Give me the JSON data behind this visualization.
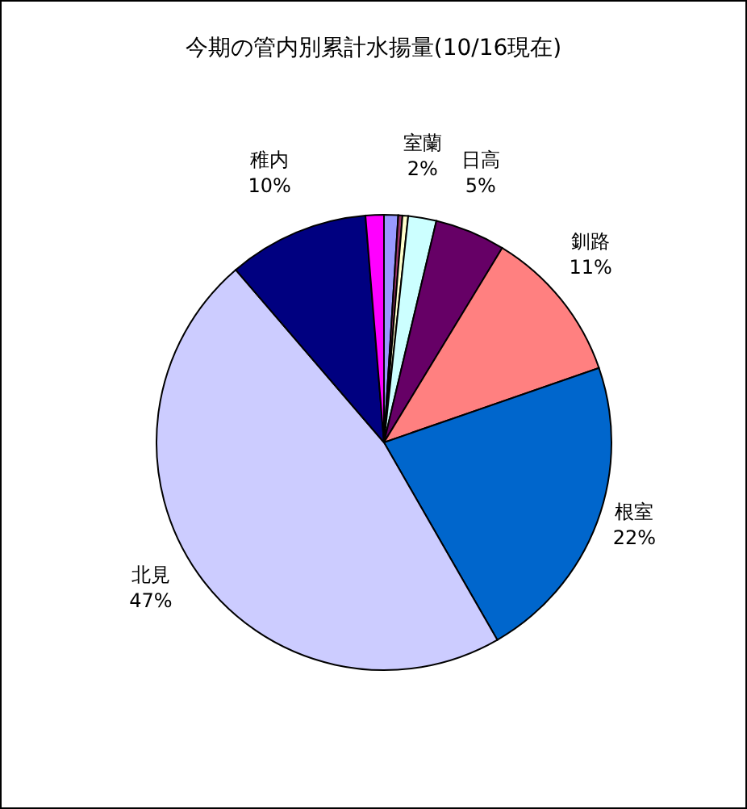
{
  "chart_data": {
    "type": "pie",
    "title": "今期の管内別累計水揚量(10/16現在)",
    "categories": [
      null,
      null,
      null,
      "室蘭",
      "日高",
      "釧路",
      "根室",
      "北見",
      "稚内",
      null
    ],
    "values": [
      1.0,
      0.3,
      0.4,
      2,
      5,
      11,
      22,
      47,
      10,
      1.3
    ],
    "value_labels": [
      null,
      null,
      null,
      "2%",
      "5%",
      "11%",
      "22%",
      "47%",
      "10%",
      null
    ],
    "colors": [
      "#9999ff",
      "#993366",
      "#ffffcc",
      "#ccffff",
      "#660066",
      "#ff8080",
      "#0066cc",
      "#ccccff",
      "#000080",
      "#ff00ff"
    ],
    "legend": false
  }
}
